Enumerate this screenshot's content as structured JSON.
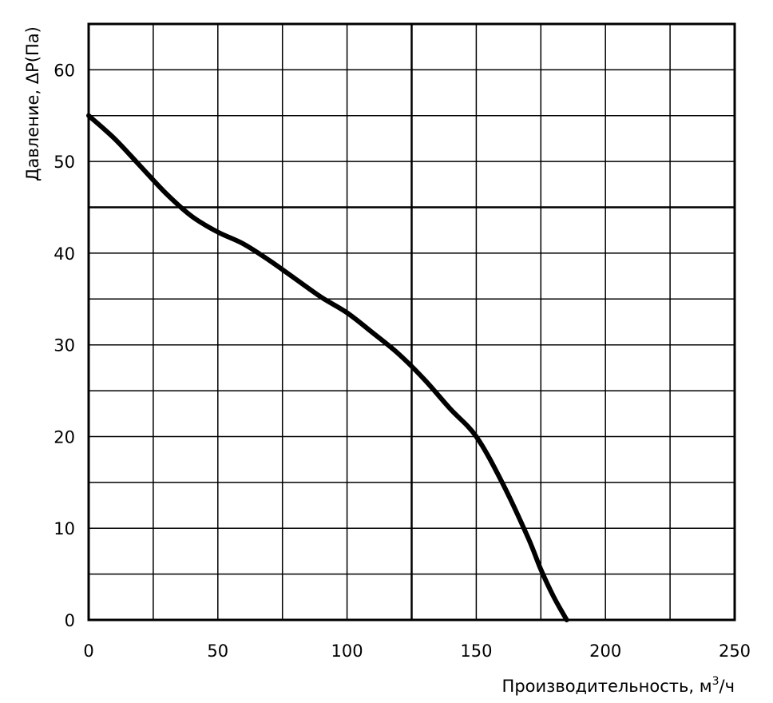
{
  "chart_data": {
    "type": "line",
    "title": "",
    "xlabel": "Производительность, м",
    "xlabel_sup": "3",
    "xlabel_suffix": "/ч",
    "ylabel": "Давление, ΔP(Па)",
    "xlim": [
      0,
      250
    ],
    "ylim": [
      0,
      65
    ],
    "xticks": [
      0,
      50,
      100,
      150,
      200,
      250
    ],
    "yticks": [
      0,
      10,
      20,
      30,
      40,
      50,
      60
    ],
    "grid": true,
    "legend": "none",
    "line_color": "#000000",
    "series": [
      {
        "x": [
          0,
          10,
          20,
          30,
          40,
          50,
          60,
          70,
          80,
          90,
          100,
          110,
          120,
          130,
          140,
          150,
          160,
          170,
          175,
          180,
          185
        ],
        "y": [
          55,
          52.5,
          49.5,
          46.5,
          44,
          42.3,
          41,
          39.2,
          37.2,
          35.2,
          33.5,
          31.3,
          29,
          26.2,
          23,
          20,
          15,
          9,
          5.5,
          2.5,
          0
        ]
      }
    ]
  }
}
